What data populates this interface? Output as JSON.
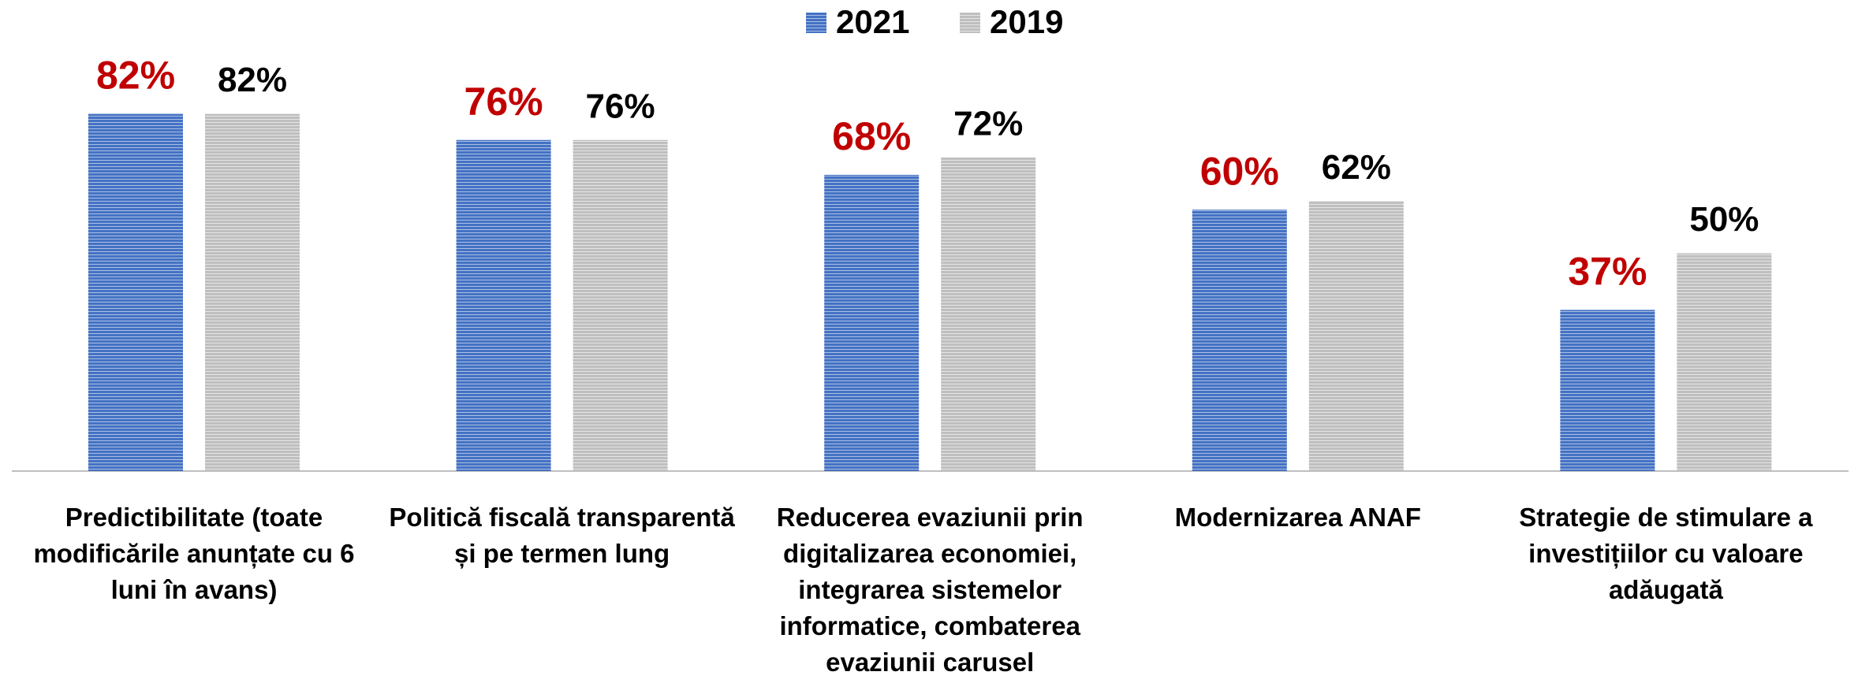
{
  "chart_data": {
    "type": "bar",
    "categories": [
      "Predictibilitate (toate modificările anunțate cu 6 luni în avans)",
      "Politică fiscală transparentă și pe termen lung",
      "Reducerea evaziunii prin digitalizarea economiei, integrarea sistemelor informatice, combaterea evaziunii carusel",
      "Modernizarea ANAF",
      "Strategie de stimulare a investițiilor cu valoare adăugată"
    ],
    "series": [
      {
        "name": "2021",
        "color": "#4472c4",
        "label_color": "#c00000",
        "values": [
          82,
          76,
          68,
          60,
          37
        ],
        "value_labels": [
          "82%",
          "76%",
          "68%",
          "60%",
          "37%"
        ]
      },
      {
        "name": "2019",
        "color": "#bfbfbf",
        "label_color": "#000000",
        "values": [
          82,
          76,
          72,
          62,
          50
        ],
        "value_labels": [
          "82%",
          "76%",
          "72%",
          "62%",
          "50%"
        ]
      }
    ],
    "ylim": [
      0,
      100
    ],
    "legend": "top"
  }
}
